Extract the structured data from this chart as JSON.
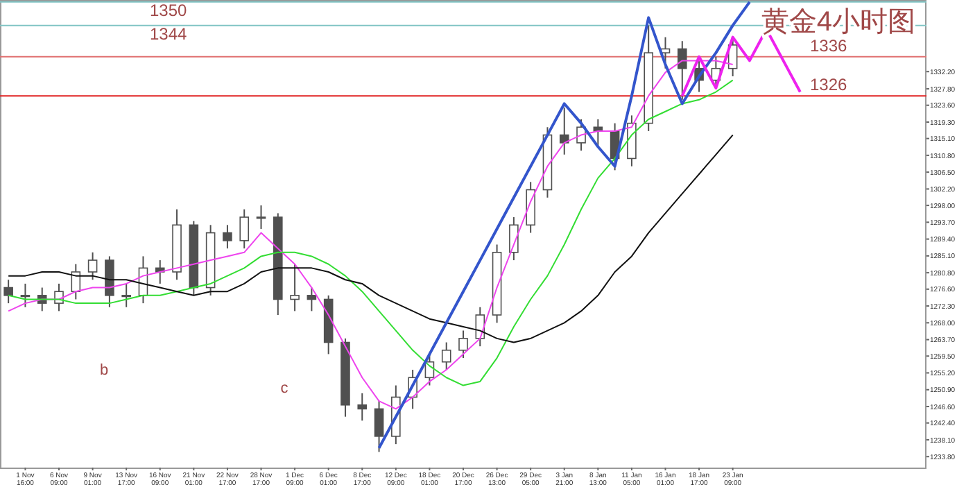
{
  "chart_data": {
    "type": "candlestick",
    "title": "黄金4小时图",
    "categories": [
      null,
      "1 Nov 16:00",
      null,
      "6 Nov 09:00",
      null,
      "9 Nov 01:00",
      null,
      "13 Nov 17:00",
      null,
      "16 Nov 09:00",
      null,
      "21 Nov 01:00",
      null,
      "22 Nov 17:00",
      null,
      "28 Nov 17:00",
      null,
      "1 Dec 09:00",
      null,
      "6 Dec 01:00",
      null,
      "8 Dec 17:00",
      null,
      "12 Dec 09:00",
      null,
      "18 Dec 01:00",
      null,
      "20 Dec 17:00",
      null,
      "26 Dec 13:00",
      null,
      "29 Dec 05:00",
      null,
      "3 Jan 21:00",
      null,
      "8 Jan 13:00",
      null,
      "11 Jan 05:00",
      null,
      "16 Jan 01:00",
      null,
      "18 Jan 17:00",
      null,
      "23 Jan 09:00",
      null,
      null,
      null,
      null,
      null,
      null,
      null,
      null,
      null,
      null,
      null
    ],
    "color": "#505050",
    "ohlc": [
      [
        1277,
        1279,
        1273,
        1275
      ],
      [
        1275,
        1278,
        1272,
        1275
      ],
      [
        1275,
        1277,
        1271,
        1273
      ],
      [
        1273,
        1278,
        1271,
        1276
      ],
      [
        1276,
        1283,
        1274,
        1281
      ],
      [
        1281,
        1286,
        1279,
        1284
      ],
      [
        1284,
        1285,
        1272,
        1275
      ],
      [
        1275,
        1278,
        1272,
        1275
      ],
      [
        1275,
        1285,
        1273,
        1282
      ],
      [
        1282,
        1284,
        1278,
        1281
      ],
      [
        1281,
        1297,
        1279,
        1293
      ],
      [
        1293,
        1294,
        1275,
        1277
      ],
      [
        1277,
        1293,
        1275,
        1291
      ],
      [
        1291,
        1293,
        1287,
        1289
      ],
      [
        1289,
        1297,
        1287,
        1295
      ],
      [
        1295,
        1298,
        1292,
        1295
      ],
      [
        1295,
        1296,
        1270,
        1274
      ],
      [
        1274,
        1283,
        1271,
        1275
      ],
      [
        1275,
        1277,
        1271,
        1274
      ],
      [
        1274,
        1275,
        1260,
        1263
      ],
      [
        1263,
        1264,
        1244,
        1247
      ],
      [
        1247,
        1250,
        1243,
        1246
      ],
      [
        1246,
        1248,
        1235,
        1239
      ],
      [
        1239,
        1252,
        1237,
        1249
      ],
      [
        1249,
        1256,
        1246,
        1254
      ],
      [
        1254,
        1260,
        1252,
        1258
      ],
      [
        1258,
        1263,
        1256,
        1261
      ],
      [
        1261,
        1266,
        1259,
        1264
      ],
      [
        1264,
        1272,
        1262,
        1270
      ],
      [
        1270,
        1288,
        1268,
        1286
      ],
      [
        1286,
        1295,
        1284,
        1293
      ],
      [
        1293,
        1304,
        1291,
        1302
      ],
      [
        1302,
        1318,
        1300,
        1316
      ],
      [
        1316,
        1323,
        1311,
        1314
      ],
      [
        1314,
        1320,
        1312,
        1318
      ],
      [
        1318,
        1320,
        1313,
        1317
      ],
      [
        1317,
        1319,
        1307,
        1310
      ],
      [
        1310,
        1321,
        1308,
        1319
      ],
      [
        1319,
        1344,
        1317,
        1337
      ],
      [
        1337,
        1341,
        1333,
        1338
      ],
      [
        1338,
        1340,
        1325,
        1333
      ],
      [
        1333,
        1335,
        1327,
        1330
      ],
      [
        1330,
        1336,
        1328,
        1333
      ],
      [
        1333,
        1341,
        1331,
        1339
      ],
      null,
      null,
      null,
      null,
      null,
      null,
      null,
      null,
      null,
      null,
      null
    ],
    "series": [
      {
        "type": "line",
        "color": "#ee44ee",
        "values": [
          1271,
          1273,
          1274,
          1274,
          1276,
          1277,
          1277,
          1278,
          1280,
          1281,
          1282,
          1283,
          1284,
          1285,
          1286,
          1291,
          1287,
          1283,
          1277,
          1270,
          1262,
          1254,
          1248,
          1246,
          1249,
          1253,
          1256,
          1260,
          1264,
          1277,
          1288,
          1299,
          1308,
          1314,
          1316,
          1317,
          1317,
          1318,
          1326,
          1332,
          1335,
          1335,
          1335,
          1334,
          null,
          null,
          null,
          null,
          null,
          null,
          null,
          null,
          null,
          null,
          null
        ]
      },
      {
        "type": "line",
        "color": "#33dd33",
        "values": [
          1275,
          1274,
          1274,
          1274,
          1273,
          1273,
          1273,
          1274,
          1275,
          1275,
          1276,
          1277,
          1278,
          1280,
          1282,
          1285,
          1286,
          1286,
          1285,
          1283,
          1280,
          1276,
          1271,
          1266,
          1261,
          1257,
          1254,
          1252,
          1253,
          1259,
          1267,
          1274,
          1280,
          1288,
          1297,
          1305,
          1310,
          1316,
          1320,
          1322,
          1324,
          1325,
          1327,
          1330,
          null,
          null,
          null,
          null,
          null,
          null,
          null,
          null,
          null,
          null,
          null
        ]
      },
      {
        "type": "line",
        "color": "#111111",
        "values": [
          1280,
          1280,
          1281,
          1281,
          1280,
          1280,
          1279,
          1279,
          1278,
          1277,
          1276,
          1275,
          1276,
          1276,
          1278,
          1281,
          1282,
          1282,
          1282,
          1281,
          1279,
          1278,
          1275,
          1273,
          1271,
          1269,
          1268,
          1267,
          1266,
          1264,
          1263,
          1264,
          1266,
          1268,
          1271,
          1275,
          1281,
          1285,
          1291,
          1296,
          1301,
          1306,
          1311,
          1316,
          null,
          null,
          null,
          null,
          null,
          null,
          null,
          null,
          null,
          null,
          null
        ]
      },
      {
        "type": "line",
        "color": "#3355cc",
        "values": [
          null,
          null,
          null,
          null,
          null,
          null,
          null,
          null,
          null,
          null,
          null,
          null,
          null,
          null,
          null,
          null,
          null,
          null,
          null,
          null,
          null,
          null,
          1236,
          1244,
          1252,
          1260,
          1268,
          1276,
          1284,
          1292,
          1300,
          1308,
          1316,
          1324,
          1319,
          1313,
          1308,
          1326,
          1346,
          1334,
          1324,
          1331,
          1337,
          1344,
          1350,
          null,
          null,
          null,
          null,
          null,
          null,
          null,
          null,
          null,
          null
        ]
      },
      {
        "type": "line",
        "color": "#ee22ee",
        "values": [
          null,
          null,
          null,
          null,
          null,
          null,
          null,
          null,
          null,
          null,
          null,
          null,
          null,
          null,
          null,
          null,
          null,
          null,
          null,
          null,
          null,
          null,
          null,
          null,
          null,
          null,
          null,
          null,
          null,
          null,
          null,
          null,
          null,
          null,
          null,
          null,
          null,
          null,
          null,
          null,
          1326,
          1336,
          1328,
          1341,
          1335,
          1343,
          1335,
          1327,
          null,
          null,
          null,
          null,
          null,
          null,
          null
        ]
      }
    ],
    "ylim": [
      1231,
      1350.5
    ],
    "yticks": [
      {
        "value": 1233.8,
        "label": "1233.80"
      },
      {
        "value": 1238.1,
        "label": "1238.10"
      },
      {
        "value": 1242.4,
        "label": "1242.40"
      },
      {
        "value": 1246.6,
        "label": "1246.60"
      },
      {
        "value": 1250.9,
        "label": "1250.90"
      },
      {
        "value": 1255.2,
        "label": "1255.20"
      },
      {
        "value": 1259.5,
        "label": "1259.50"
      },
      {
        "value": 1263.7,
        "label": "1263.70"
      },
      {
        "value": 1268.0,
        "label": "1268.00"
      },
      {
        "value": 1272.3,
        "label": "1272.30"
      },
      {
        "value": 1276.6,
        "label": "1276.60"
      },
      {
        "value": 1280.8,
        "label": "1280.80"
      },
      {
        "value": 1285.1,
        "label": "1285.10"
      },
      {
        "value": 1289.4,
        "label": "1289.40"
      },
      {
        "value": 1293.7,
        "label": "1293.70"
      },
      {
        "value": 1298.0,
        "label": "1298.00"
      },
      {
        "value": 1302.2,
        "label": "1302.20"
      },
      {
        "value": 1306.5,
        "label": "1306.50"
      },
      {
        "value": 1310.8,
        "label": "1310.80"
      },
      {
        "value": 1315.1,
        "label": "1315.10"
      },
      {
        "value": 1319.3,
        "label": "1319.30"
      },
      {
        "value": 1323.6,
        "label": "1323.60"
      },
      {
        "value": 1327.8,
        "label": "1327.80"
      },
      {
        "value": 1332.2,
        "label": "1332.20"
      }
    ],
    "ref_lines": [
      {
        "axis": "y",
        "value": 1350,
        "label": "1350",
        "color": "#80c4c4"
      },
      {
        "axis": "y",
        "value": 1344,
        "label": "1344",
        "color": "#80c4c4"
      },
      {
        "axis": "y",
        "value": 1336,
        "label": "1336",
        "color": "#e07070"
      },
      {
        "axis": "y",
        "value": 1326,
        "label": "1326",
        "color": "#e02020"
      }
    ],
    "annotations": [
      "b",
      "c"
    ]
  }
}
